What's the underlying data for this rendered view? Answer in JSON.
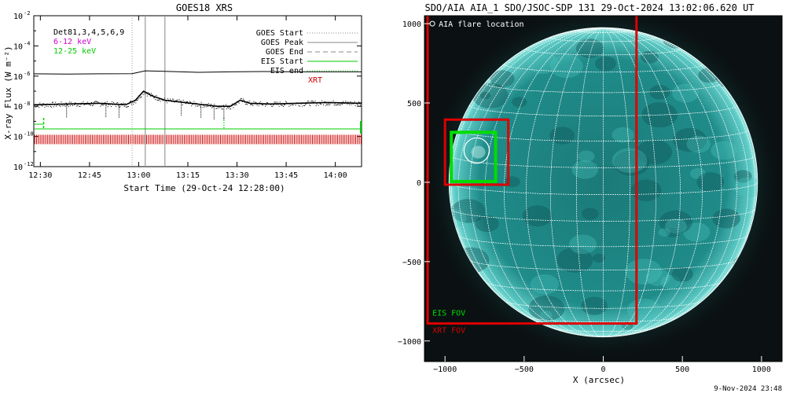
{
  "chart_data": [
    {
      "type": "line",
      "title": "GOES18 XRS",
      "xlabel": "Start Time (29-Oct-24 12:28:00)",
      "ylabel": "X-ray Flux (W m⁻²)",
      "xlim_minutes_after_start": [
        0,
        100
      ],
      "ylim_log10": [
        -12,
        -2
      ],
      "x_ticks": [
        {
          "min": 2,
          "label": "12:30"
        },
        {
          "min": 17,
          "label": "12:45"
        },
        {
          "min": 32,
          "label": "13:00"
        },
        {
          "min": 47,
          "label": "13:15"
        },
        {
          "min": 62,
          "label": "13:30"
        },
        {
          "min": 77,
          "label": "13:45"
        },
        {
          "min": 92,
          "label": "14:00"
        }
      ],
      "y_ticks": [
        {
          "exp": -2,
          "label": "10",
          "sup": "-2"
        },
        {
          "exp": -4,
          "label": "10",
          "sup": "-4"
        },
        {
          "exp": -6,
          "label": "10",
          "sup": "-6"
        },
        {
          "exp": -8,
          "label": "10",
          "sup": "-8"
        },
        {
          "exp": -10,
          "label": "10",
          "sup": "-10"
        },
        {
          "exp": -12,
          "label": "10",
          "sup": "-12"
        }
      ],
      "legend_left": [
        {
          "text": "Det81,3,4,5,6,9",
          "color": "#000000"
        },
        {
          "text": "6-12 keV",
          "color": "#d000d0"
        },
        {
          "text": "12-25 keV",
          "color": "#00cc00"
        }
      ],
      "legend_right": [
        {
          "text": "GOES Start",
          "style": "dotted",
          "color": "#888888"
        },
        {
          "text": "GOES Peak",
          "style": "solid",
          "color": "#888888"
        },
        {
          "text": "GOES End",
          "style": "dashed",
          "color": "#888888"
        },
        {
          "text": "EIS Start",
          "style": "solid",
          "color": "#00cc00"
        },
        {
          "text": "EIS end",
          "style": "dotted",
          "color": "#00cc00"
        },
        {
          "text": "XRT",
          "style": "none",
          "color": "#cc0000"
        }
      ],
      "goes_times_min": {
        "start": 30,
        "peak": 34,
        "end": 40
      },
      "series": [
        {
          "color": "#000000",
          "points": [
            [
              0,
              -5.85
            ],
            [
              10,
              -5.87
            ],
            [
              20,
              -5.85
            ],
            [
              30,
              -5.84
            ],
            [
              34,
              -5.65
            ],
            [
              40,
              -5.68
            ],
            [
              50,
              -5.75
            ],
            [
              60,
              -5.72
            ],
            [
              70,
              -5.7
            ],
            [
              80,
              -5.72
            ],
            [
              90,
              -5.72
            ],
            [
              100,
              -5.72
            ]
          ]
        },
        {
          "color": "#000000",
          "points": [
            [
              0,
              -7.9
            ],
            [
              10,
              -7.85
            ],
            [
              20,
              -7.8
            ],
            [
              28,
              -7.9
            ],
            [
              31,
              -7.6
            ],
            [
              33.5,
              -7.0
            ],
            [
              36,
              -7.3
            ],
            [
              40,
              -7.6
            ],
            [
              48,
              -7.8
            ],
            [
              56,
              -8.0
            ],
            [
              60,
              -8.0
            ],
            [
              63,
              -7.6
            ],
            [
              66,
              -7.8
            ],
            [
              72,
              -7.85
            ],
            [
              80,
              -7.8
            ],
            [
              90,
              -7.75
            ],
            [
              100,
              -7.8
            ]
          ]
        },
        {
          "color": "#00cc00",
          "points": [
            [
              0,
              -9.5
            ],
            [
              100,
              -9.5
            ]
          ]
        }
      ],
      "eis_start_min": 3,
      "eis_end_min": 58,
      "xrt_marker_log10": -10.2
    },
    {
      "type": "heatmap",
      "title": "SDO/AIA AIA_1 SDO/JSOC-SDP 131 29-Oct-2024 13:02:06.620 UT",
      "xlabel": "X (arcsec)",
      "ylabel": "",
      "xlim": [
        -1130,
        1130
      ],
      "ylim": [
        -1130,
        1050
      ],
      "x_ticks": [
        -1000,
        -500,
        0,
        500,
        1000
      ],
      "y_ticks": [
        -1000,
        -500,
        0,
        500,
        1000
      ],
      "tick_labels_x": [
        "−1000",
        "−500",
        "0",
        "500",
        "1000"
      ],
      "tick_labels_y": [
        "−1000",
        "−500",
        "0",
        "500",
        "1000"
      ],
      "solar_radius_arcsec": 975,
      "grid": true,
      "legend": {
        "flare": "AIA flare location"
      },
      "fov_labels": {
        "eis": "EIS FOV",
        "xrt": "XRT FOV"
      },
      "colors": {
        "eis": "#00dd00",
        "xrt": "#dd0000",
        "disk": "#1aa0a0"
      },
      "xrt_fov_large": {
        "x0": -1110,
        "x1": 210,
        "y0": -890,
        "y1": 1110
      },
      "xrt_fov_small": {
        "x0": -1000,
        "x1": -600,
        "y0": -15,
        "y1": 395
      },
      "eis_fov": {
        "x0": -960,
        "x1": -680,
        "y0": 5,
        "y1": 315
      },
      "flare": {
        "x": -800,
        "y": 200,
        "r": 80
      }
    }
  ],
  "footer": {
    "timestamp": "9-Nov-2024 23:48"
  }
}
